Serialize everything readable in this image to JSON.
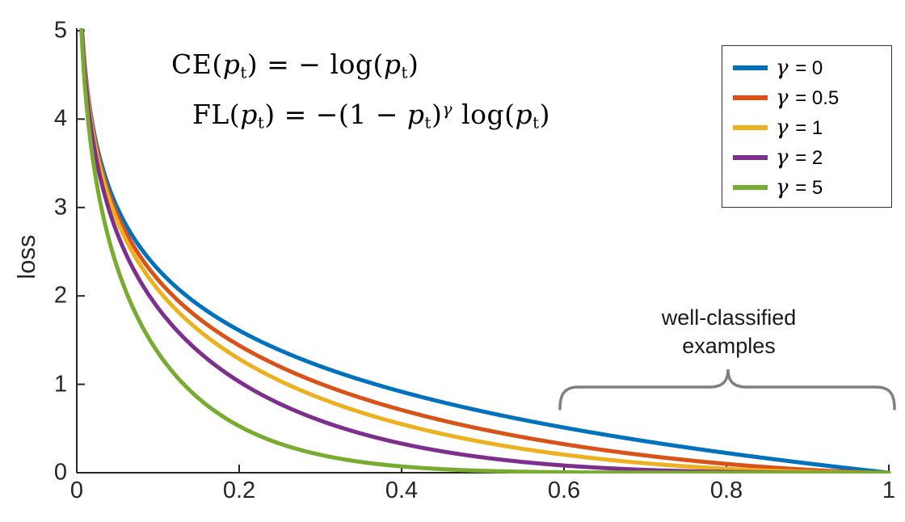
{
  "figure": {
    "background": "#ffffff"
  },
  "colors": {
    "axis": "#262626",
    "tick_text": "#262626",
    "formula_text": "#000000",
    "annotation_text": "#1a1a1a",
    "brace": "#7f7f7f",
    "legend_border": "#333333"
  },
  "chart_data": {
    "type": "line",
    "title": "",
    "xlabel": "",
    "ylabel": "loss",
    "xlim": [
      0,
      1
    ],
    "ylim": [
      0,
      5
    ],
    "grid": false,
    "legend_position": "top-right",
    "x_ticks": [
      0,
      0.2,
      0.4,
      0.6,
      0.8,
      1
    ],
    "x_tick_labels": [
      "0",
      "0.2",
      "0.4",
      "0.6",
      "0.8",
      "1"
    ],
    "y_ticks": [
      0,
      1,
      2,
      3,
      4,
      5
    ],
    "y_tick_labels": [
      "0",
      "1",
      "2",
      "3",
      "4",
      "5"
    ],
    "formula": "FL(pt) = -(1 - pt)^gamma * log(pt); CE is the gamma = 0 case",
    "series": [
      {
        "label": "γ = 0",
        "gamma": 0,
        "color": "#0072BD"
      },
      {
        "label": "γ = 0.5",
        "gamma": 0.5,
        "color": "#D95319"
      },
      {
        "label": "γ = 1",
        "gamma": 1,
        "color": "#EDB120"
      },
      {
        "label": "γ = 2",
        "gamma": 2,
        "color": "#7E2F8E"
      },
      {
        "label": "γ = 5",
        "gamma": 5,
        "color": "#77AC30"
      }
    ],
    "sample_points": {
      "x": [
        0.05,
        0.1,
        0.2,
        0.3,
        0.4,
        0.5,
        0.6,
        0.7,
        0.8,
        0.9,
        1.0
      ],
      "series_values": [
        [
          2.996,
          2.303,
          1.609,
          1.204,
          0.916,
          0.693,
          0.511,
          0.357,
          0.223,
          0.105,
          0.0
        ],
        [
          2.92,
          2.185,
          1.439,
          1.007,
          0.71,
          0.49,
          0.323,
          0.195,
          0.1,
          0.033,
          0.0
        ],
        [
          2.846,
          2.072,
          1.288,
          0.843,
          0.55,
          0.347,
          0.204,
          0.107,
          0.045,
          0.011,
          0.0
        ],
        [
          2.704,
          1.865,
          1.03,
          0.59,
          0.33,
          0.173,
          0.082,
          0.032,
          0.009,
          0.001,
          0.0
        ],
        [
          2.318,
          1.36,
          0.527,
          0.202,
          0.071,
          0.022,
          0.005,
          0.001,
          0.0,
          0.0,
          0.0
        ]
      ]
    },
    "annotations": [
      "well-classified examples brace from x≈0.6 to x=1"
    ]
  },
  "formulas": {
    "ce": {
      "plain": "CE(pt) = − log(pt)",
      "tokens": [
        {
          "t": "CE("
        },
        {
          "t": "p",
          "style": "var"
        },
        {
          "t": "t",
          "style": "sub"
        },
        {
          "t": ") = − log("
        },
        {
          "t": "p",
          "style": "var"
        },
        {
          "t": "t",
          "style": "sub"
        },
        {
          "t": ")"
        }
      ]
    },
    "fl": {
      "plain": "FL(pt) = −(1 − pt)^γ log(pt)",
      "tokens": [
        {
          "t": "FL("
        },
        {
          "t": "p",
          "style": "var"
        },
        {
          "t": "t",
          "style": "sub"
        },
        {
          "t": ") = −(1 − "
        },
        {
          "t": "p",
          "style": "var"
        },
        {
          "t": "t",
          "style": "sub"
        },
        {
          "t": ")"
        },
        {
          "t": "γ",
          "style": "sup"
        },
        {
          "t": " log("
        },
        {
          "t": "p",
          "style": "var"
        },
        {
          "t": "t",
          "style": "sub"
        },
        {
          "t": ")"
        }
      ]
    }
  },
  "annotation": {
    "line1": "well-classified",
    "line2": "examples"
  }
}
